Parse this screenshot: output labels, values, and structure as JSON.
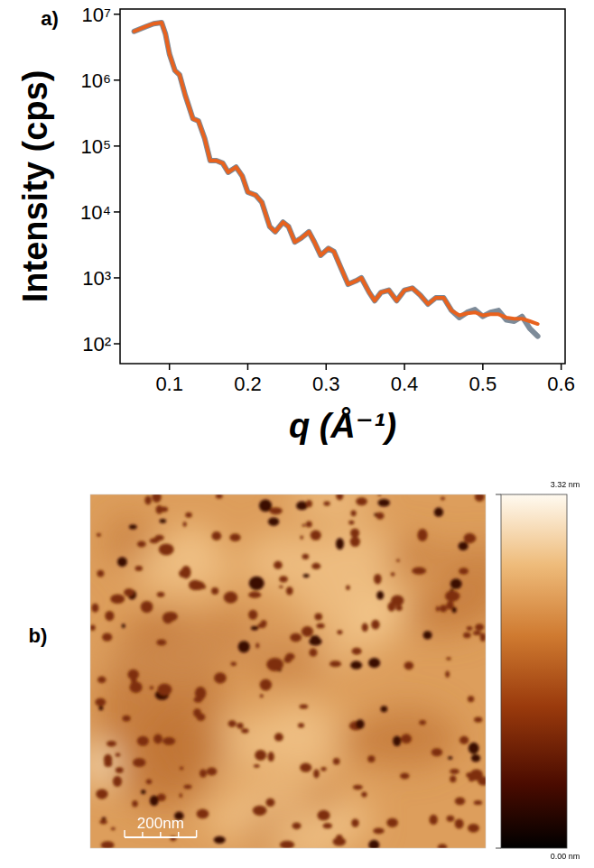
{
  "panel_labels": [
    "a)",
    "b)"
  ],
  "chart_data": {
    "type": "line",
    "log": "y",
    "x_label": "q (Å⁻¹)",
    "y_label": "Intensity (cps)",
    "x": [
      0.055,
      0.07,
      0.08,
      0.09,
      0.095,
      0.1,
      0.107,
      0.113,
      0.12,
      0.13,
      0.137,
      0.145,
      0.152,
      0.16,
      0.168,
      0.175,
      0.185,
      0.193,
      0.2,
      0.21,
      0.218,
      0.228,
      0.235,
      0.245,
      0.252,
      0.26,
      0.268,
      0.278,
      0.285,
      0.293,
      0.303,
      0.31,
      0.318,
      0.328,
      0.338,
      0.345,
      0.355,
      0.362,
      0.37,
      0.38,
      0.39,
      0.4,
      0.41,
      0.42,
      0.43,
      0.44,
      0.45,
      0.46,
      0.47,
      0.48,
      0.49,
      0.5,
      0.51,
      0.52,
      0.53,
      0.54,
      0.55,
      0.56,
      0.57
    ],
    "series": [
      {
        "color": "#7d8b99",
        "line_style": "solid",
        "values": [
          5500000,
          6500000,
          7200000,
          7500000,
          5000000,
          2500000,
          1400000,
          1200000,
          600000,
          260000,
          240000,
          130000,
          60000,
          60000,
          55000,
          40000,
          48000,
          35000,
          20000,
          18000,
          14000,
          6000,
          5000,
          7000,
          6000,
          3500,
          4000,
          5000,
          3500,
          2200,
          2800,
          2500,
          1500,
          800,
          900,
          1000,
          600,
          450,
          600,
          650,
          450,
          650,
          700,
          550,
          400,
          500,
          500,
          320,
          250,
          300,
          330,
          260,
          300,
          320,
          230,
          220,
          260,
          170,
          130
        ]
      },
      {
        "color": "#e8621e",
        "line_style": "solid",
        "values": [
          5500000,
          6500000,
          7200000,
          7500000,
          5000000,
          2500000,
          1400000,
          1200000,
          600000,
          260000,
          240000,
          130000,
          60000,
          60000,
          55000,
          40000,
          48000,
          35000,
          20000,
          18000,
          14000,
          6000,
          5000,
          7000,
          6000,
          3500,
          4000,
          5000,
          3500,
          2200,
          2800,
          2500,
          1500,
          800,
          900,
          1000,
          600,
          450,
          600,
          650,
          450,
          650,
          700,
          550,
          400,
          500,
          500,
          320,
          270,
          290,
          300,
          270,
          280,
          280,
          250,
          240,
          240,
          220,
          200
        ]
      }
    ],
    "xlim": [
      0.037,
      0.605
    ],
    "ylim": [
      50,
      12000000
    ],
    "xticks": [
      0.1,
      0.2,
      0.3,
      0.4,
      0.5,
      0.6
    ],
    "yticks": [
      {
        "value": 100,
        "label": "10²"
      },
      {
        "value": 1000,
        "label": "10³"
      },
      {
        "value": 10000,
        "label": "10⁴"
      },
      {
        "value": 100000,
        "label": "10⁵"
      },
      {
        "value": 1000000,
        "label": "10⁶"
      },
      {
        "value": 10000000,
        "label": "10⁷"
      }
    ],
    "grid": false
  },
  "afm_image": {
    "width_nm": 1100,
    "scale_bar": {
      "length_nm": 200,
      "label": "200nm"
    },
    "colorbar": {
      "range": [
        0,
        3.32
      ],
      "ticks": [
        {
          "value": 3.32,
          "label": "3.32 nm"
        },
        {
          "value": 0,
          "label": "0.00 nm"
        }
      ]
    }
  }
}
